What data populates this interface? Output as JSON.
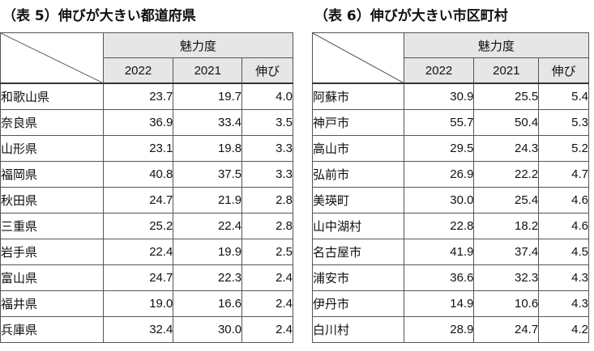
{
  "left": {
    "caption": "（表 5）伸びが大きい都道府県",
    "group_header": "魅力度",
    "columns": [
      "2022",
      "2021",
      "伸び"
    ],
    "rows": [
      {
        "name": "和歌山県",
        "v2022": "23.7",
        "v2021": "19.7",
        "growth": "4.0"
      },
      {
        "name": "奈良県",
        "v2022": "36.9",
        "v2021": "33.4",
        "growth": "3.5"
      },
      {
        "name": "山形県",
        "v2022": "23.1",
        "v2021": "19.8",
        "growth": "3.3"
      },
      {
        "name": "福岡県",
        "v2022": "40.8",
        "v2021": "37.5",
        "growth": "3.3"
      },
      {
        "name": "秋田県",
        "v2022": "24.7",
        "v2021": "21.9",
        "growth": "2.8"
      },
      {
        "name": "三重県",
        "v2022": "25.2",
        "v2021": "22.4",
        "growth": "2.8"
      },
      {
        "name": "岩手県",
        "v2022": "22.4",
        "v2021": "19.9",
        "growth": "2.5"
      },
      {
        "name": "富山県",
        "v2022": "24.7",
        "v2021": "22.3",
        "growth": "2.4"
      },
      {
        "name": "福井県",
        "v2022": "19.0",
        "v2021": "16.6",
        "growth": "2.4"
      },
      {
        "name": "兵庫県",
        "v2022": "32.4",
        "v2021": "30.0",
        "growth": "2.4"
      }
    ]
  },
  "right": {
    "caption": "（表 6）伸びが大きい市区町村",
    "group_header": "魅力度",
    "columns": [
      "2022",
      "2021",
      "伸び"
    ],
    "rows": [
      {
        "name": "阿蘇市",
        "v2022": "30.9",
        "v2021": "25.5",
        "growth": "5.4"
      },
      {
        "name": "神戸市",
        "v2022": "55.7",
        "v2021": "50.4",
        "growth": "5.3"
      },
      {
        "name": "高山市",
        "v2022": "29.5",
        "v2021": "24.3",
        "growth": "5.2"
      },
      {
        "name": "弘前市",
        "v2022": "26.9",
        "v2021": "22.2",
        "growth": "4.7"
      },
      {
        "name": "美瑛町",
        "v2022": "30.0",
        "v2021": "25.4",
        "growth": "4.6"
      },
      {
        "name": "山中湖村",
        "v2022": "22.8",
        "v2021": "18.2",
        "growth": "4.6"
      },
      {
        "name": "名古屋市",
        "v2022": "41.9",
        "v2021": "37.4",
        "growth": "4.5"
      },
      {
        "name": "浦安市",
        "v2022": "36.6",
        "v2021": "32.3",
        "growth": "4.3"
      },
      {
        "name": "伊丹市",
        "v2022": "14.9",
        "v2021": "10.6",
        "growth": "4.3"
      },
      {
        "name": "白川村",
        "v2022": "28.9",
        "v2021": "24.7",
        "growth": "4.2"
      }
    ]
  }
}
